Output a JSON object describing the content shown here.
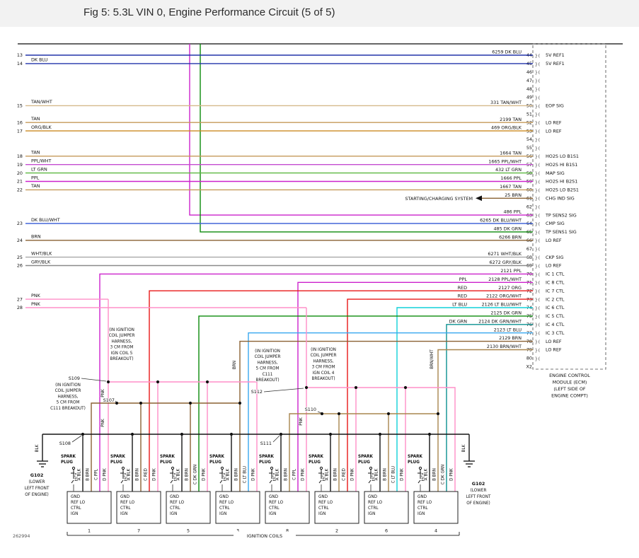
{
  "title": "Fig 5: 5.3L VIN 0, Engine Performance Circuit (5 of 5)",
  "drawing_number": "262994",
  "palette": {
    "DK BLU": "#2233aa",
    "TAN": "#c49a5a",
    "TAN/WHT": "#d6b98c",
    "ORG/BLK": "#cc8a22",
    "PPL/WHT": "#c44cd0",
    "LT GRN": "#5cb840",
    "PPL": "#cc22cc",
    "BRN": "#8a6132",
    "DK BLU/WHT": "#4466d8",
    "DK GRN": "#0a8a0a",
    "WHT/BLK": "#a8a8a8",
    "GRY/BLK": "#8a8a8a",
    "PNK": "#ff8fc8",
    "BRN/WHT": "#a8854e",
    "BLK": "#151515",
    "LT BLU": "#3aa8f0",
    "LT BLU/WHT": "#10d0d8",
    "DK GRN/WHT": "#0a9090",
    "ORG": "#e87818",
    "ORG/WHT": "#e86a2a",
    "RED": "#e81818"
  },
  "ecm": {
    "connector": "X2",
    "caption": [
      "ENGINE CONTROL",
      "MODULE (ECM)",
      "(LEFT SIDE OF",
      "ENGINE COMPT)"
    ],
    "pins": [
      {
        "pin": "44",
        "signal": "5V REF1",
        "wire": "6259",
        "color": "DK BLU"
      },
      {
        "pin": "45",
        "signal": "5V REF1"
      },
      {
        "pin": "46"
      },
      {
        "pin": "47"
      },
      {
        "pin": "48"
      },
      {
        "pin": "49"
      },
      {
        "pin": "50",
        "signal": "EOP SIG",
        "wire": "331",
        "color": "TAN/WHT"
      },
      {
        "pin": "51"
      },
      {
        "pin": "52",
        "signal": "LO REF",
        "wire": "2199",
        "color": "TAN"
      },
      {
        "pin": "53",
        "signal": "LO REF",
        "wire": "469",
        "color": "ORG/BLK"
      },
      {
        "pin": "54"
      },
      {
        "pin": "55"
      },
      {
        "pin": "56",
        "signal": "HO2S LO B1S1",
        "wire": "1664",
        "color": "TAN"
      },
      {
        "pin": "57",
        "signal": "HO2S HI B1S1",
        "wire": "1665",
        "color": "PPL/WHT"
      },
      {
        "pin": "58",
        "signal": "MAP SIG",
        "wire": "432",
        "color": "LT GRN"
      },
      {
        "pin": "59",
        "signal": "HO2S HI B2S1",
        "wire": "1666",
        "color": "PPL"
      },
      {
        "pin": "60",
        "signal": "HO2S LO B2S1",
        "wire": "1667",
        "color": "TAN"
      },
      {
        "pin": "61",
        "signal": "CHG IND SIG",
        "wire": "25",
        "color": "BRN"
      },
      {
        "pin": "62"
      },
      {
        "pin": "63",
        "signal": "TP SENS2 SIG",
        "wire": "486",
        "color": "PPL"
      },
      {
        "pin": "64",
        "signal": "CMP SIG",
        "wire": "6265",
        "color": "DK BLU/WHT"
      },
      {
        "pin": "65",
        "signal": "TP SENS1 SIG",
        "wire": "485",
        "color": "DK GRN"
      },
      {
        "pin": "66",
        "signal": "LO REF",
        "wire": "6266",
        "color": "BRN"
      },
      {
        "pin": "67"
      },
      {
        "pin": "68",
        "signal": "CKP SIG",
        "wire": "6271",
        "color": "WHT/BLK"
      },
      {
        "pin": "69",
        "signal": "LO REF",
        "wire": "6272",
        "color": "GRY/BLK"
      },
      {
        "pin": "70",
        "signal": "IC 1 CTL",
        "wire": "2121",
        "color": "PPL"
      },
      {
        "pin": "71",
        "signal": "IC 8 CTL",
        "wire": "2128",
        "color": "PPL/WHT"
      },
      {
        "pin": "72",
        "signal": "IC 7 CTL",
        "wire": "2127",
        "color": "ORG"
      },
      {
        "pin": "73",
        "signal": "IC 2 CTL",
        "wire": "2122",
        "color": "ORG/WHT"
      },
      {
        "pin": "74",
        "signal": "IC 6 CTL",
        "wire": "2126",
        "color": "LT BLU/WHT"
      },
      {
        "pin": "75",
        "signal": "IC 5 CTL",
        "wire": "2125",
        "color": "DK GRN"
      },
      {
        "pin": "76",
        "signal": "IC 4 CTL",
        "wire": "2124",
        "color": "DK GRN/WHT"
      },
      {
        "pin": "77",
        "signal": "IC 3 CTL",
        "wire": "2123",
        "color": "LT BLU"
      },
      {
        "pin": "78",
        "signal": "LO REF",
        "wire": "2129",
        "color": "BRN"
      },
      {
        "pin": "79",
        "signal": "LO REF",
        "wire": "2130",
        "color": "BRN/WHT"
      },
      {
        "pin": "80"
      },
      {
        "pin": "X2"
      }
    ]
  },
  "left_rows": [
    {
      "num": "13",
      "label": "",
      "color": "DK BLU",
      "pin": "44"
    },
    {
      "num": "14",
      "label": "DK BLU",
      "color": "DK BLU",
      "pin": "45"
    },
    {
      "num": "15",
      "label": "TAN/WHT",
      "color": "TAN/WHT",
      "pin": "50"
    },
    {
      "num": "16",
      "label": "TAN",
      "color": "TAN",
      "pin": "52"
    },
    {
      "num": "17",
      "label": "ORG/BLK",
      "color": "ORG/BLK",
      "pin": "53"
    },
    {
      "num": "18",
      "label": "TAN",
      "color": "TAN",
      "pin": "56"
    },
    {
      "num": "19",
      "label": "PPL/WHT",
      "color": "PPL/WHT",
      "pin": "57"
    },
    {
      "num": "20",
      "label": "LT GRN",
      "color": "LT GRN",
      "pin": "58"
    },
    {
      "num": "21",
      "label": "PPL",
      "color": "PPL",
      "pin": "59"
    },
    {
      "num": "22",
      "label": "TAN",
      "color": "TAN",
      "pin": "60"
    },
    {
      "num": "23",
      "label": "DK BLU/WHT",
      "color": "DK BLU/WHT",
      "pin": "64"
    },
    {
      "num": "24",
      "label": "BRN",
      "color": "BRN",
      "pin": "66"
    },
    {
      "num": "25",
      "label": "WHT/BLK",
      "color": "WHT/BLK",
      "pin": "68"
    },
    {
      "num": "26",
      "label": "GRY/BLK",
      "color": "GRY/BLK",
      "pin": "69"
    },
    {
      "num": "27",
      "label": "PNK",
      "color": "PNK",
      "net": "pnk_left"
    },
    {
      "num": "28",
      "label": "PNK",
      "color": "PNK",
      "net": "pnk_right"
    }
  ],
  "offpage_label": "STARTING/CHARGING SYSTEM",
  "branch_labels": [
    {
      "pin": "71",
      "text": "PPL"
    },
    {
      "pin": "72",
      "text": "RED"
    },
    {
      "pin": "73",
      "text": "RED"
    },
    {
      "pin": "74",
      "text": "LT BLU"
    },
    {
      "pin": "76",
      "text": "DK GRN"
    }
  ],
  "splices": [
    {
      "id": "S107",
      "note": [
        "(IN IGNITION",
        "COIL JUMPER",
        "HARNESS,",
        "3 CM FROM",
        "IGN COIL 5",
        "BREAKOUT)"
      ]
    },
    {
      "id": "S108",
      "note": []
    },
    {
      "id": "S109",
      "note": [
        "(IN IGNITION",
        "COIL JUMPER",
        "HARNESS,",
        "5 CM FROM",
        "C111 BREAKOUT)"
      ]
    },
    {
      "id": "S110",
      "note": [
        "(IN IGNITION",
        "COIL JUMPER",
        "HARNESS,",
        "3 CM FROM",
        "IGN COIL 4",
        "BREAKOUT)"
      ]
    },
    {
      "id": "S111",
      "note": []
    },
    {
      "id": "S112",
      "note": [
        "(IN IGNITION",
        "COIL JUMPER",
        "HARNESS,",
        "5 CM FROM",
        "C111",
        "BREAKOUT)"
      ]
    }
  ],
  "grounds": [
    {
      "id": "G102",
      "note": [
        "(LOWER",
        "LEFT FRONT",
        "OF ENGINE)"
      ]
    },
    {
      "id": "G102",
      "note": [
        "(LOWER",
        "LEFT FRONT",
        "OF ENGINE)"
      ]
    }
  ],
  "harness_labels": {
    "pnk": "PNK",
    "brn": "BRN",
    "brn_wht": "BRN/WHT",
    "blk": "BLK"
  },
  "ignition_coils": {
    "group_label": "IGNITION COILS",
    "spark_plug": [
      "SPARK",
      "PLUG"
    ],
    "stub_label": "NCA",
    "functions": [
      "GND",
      "REF LO",
      "CTRL",
      "IGN"
    ],
    "pin_a": "A BLK",
    "pin_b": "B BRN",
    "pin_d": "D PNK",
    "items": [
      {
        "number": "1",
        "pin_c": "C PPL",
        "ctrl_pin": "70"
      },
      {
        "number": "7",
        "pin_c": "C RED",
        "ctrl_pin": "72"
      },
      {
        "number": "5",
        "pin_c": "C DK GRN",
        "ctrl_pin": "75"
      },
      {
        "number": "3",
        "pin_c": "C LT BLU",
        "ctrl_pin": "77"
      },
      {
        "number": "8",
        "pin_c": "C PPL",
        "ctrl_pin": "71"
      },
      {
        "number": "2",
        "pin_c": "C RED",
        "ctrl_pin": "73"
      },
      {
        "number": "6",
        "pin_c": "C LT BLU",
        "ctrl_pin": "74"
      },
      {
        "number": "4",
        "pin_c": "C DK GRN",
        "ctrl_pin": "76"
      }
    ]
  }
}
